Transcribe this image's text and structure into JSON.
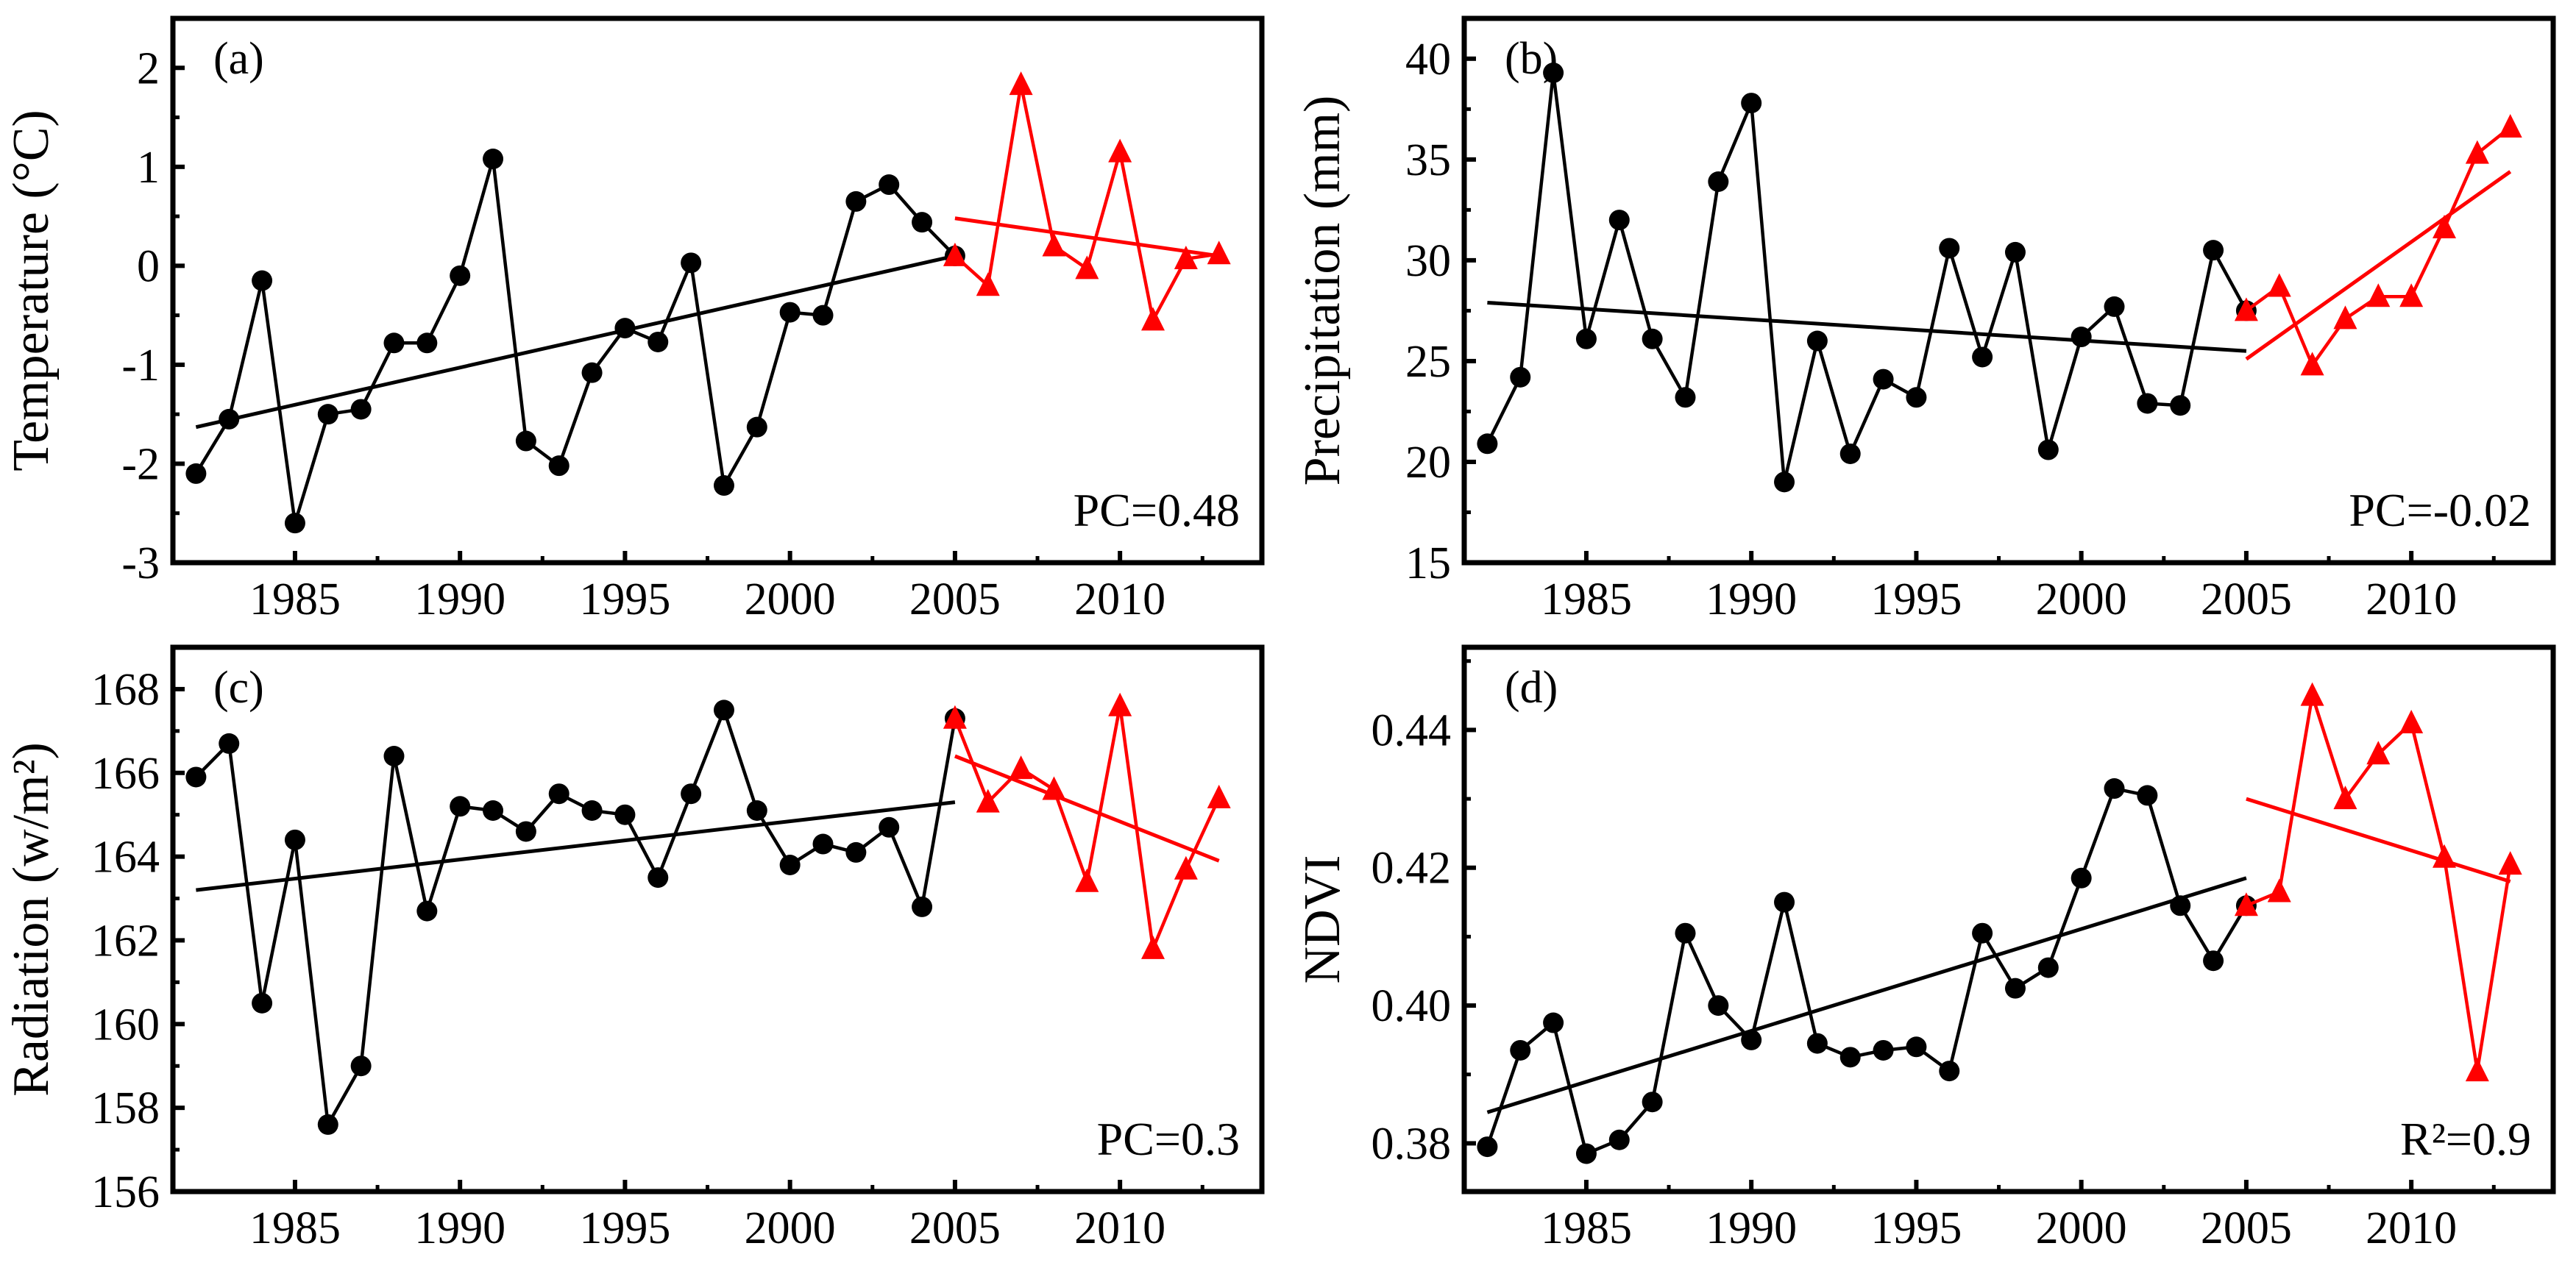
{
  "chart_data": [
    {
      "type": "line",
      "panel_label": "(a)",
      "ylabel": "Temperature (°C)",
      "xlim": [
        1981.3,
        2014.3
      ],
      "ylim": [
        -3,
        2.5
      ],
      "yticks": [
        -3,
        -2,
        -1,
        0,
        1,
        2
      ],
      "ytick_labels": [
        "-3",
        "-2",
        "-1",
        "0",
        "1",
        "2"
      ],
      "xticks": [
        1985,
        1990,
        1995,
        2000,
        2005,
        2010
      ],
      "xtick_labels": [
        "1985",
        "1990",
        "1995",
        "2000",
        "2005",
        "2010"
      ],
      "annotation": "PC=0.48",
      "series": [
        {
          "color": "#000000",
          "marker": "circle",
          "x": [
            1982,
            1983,
            1984,
            1985,
            1986,
            1987,
            1988,
            1989,
            1990,
            1991,
            1992,
            1993,
            1994,
            1995,
            1996,
            1997,
            1998,
            1999,
            2000,
            2001,
            2002,
            2003,
            2004,
            2005
          ],
          "y": [
            -2.1,
            -1.55,
            -0.15,
            -2.6,
            -1.5,
            -1.45,
            -0.78,
            -0.78,
            -0.1,
            1.08,
            -1.77,
            -2.02,
            -1.08,
            -0.63,
            -0.77,
            0.03,
            -2.22,
            -1.63,
            -0.47,
            -0.5,
            0.65,
            0.82,
            0.44,
            0.1
          ],
          "trend": [
            [
              1982,
              -1.63
            ],
            [
              2005,
              0.1
            ]
          ]
        },
        {
          "color": "#ff0000",
          "marker": "triangle",
          "x": [
            2005,
            2006,
            2007,
            2008,
            2009,
            2010,
            2011,
            2012,
            2013
          ],
          "y": [
            0.1,
            -0.2,
            1.83,
            0.2,
            -0.03,
            1.15,
            -0.55,
            0.07,
            0.12
          ],
          "trend": [
            [
              2005,
              0.48
            ],
            [
              2013,
              0.1
            ]
          ]
        }
      ]
    },
    {
      "type": "line",
      "panel_label": "(b)",
      "ylabel": "Precipitation (mm)",
      "xlim": [
        1981.3,
        2014.3
      ],
      "ylim": [
        15,
        42
      ],
      "yticks": [
        15,
        20,
        25,
        30,
        35,
        40
      ],
      "ytick_labels": [
        "15",
        "20",
        "25",
        "30",
        "35",
        "40"
      ],
      "xticks": [
        1985,
        1990,
        1995,
        2000,
        2005,
        2010
      ],
      "xtick_labels": [
        "1985",
        "1990",
        "1995",
        "2000",
        "2005",
        "2010"
      ],
      "annotation": "PC=-0.02",
      "series": [
        {
          "color": "#000000",
          "marker": "circle",
          "x": [
            1982,
            1983,
            1984,
            1985,
            1986,
            1987,
            1988,
            1989,
            1990,
            1991,
            1992,
            1993,
            1994,
            1995,
            1996,
            1997,
            1998,
            1999,
            2000,
            2001,
            2002,
            2003,
            2004,
            2005
          ],
          "y": [
            20.9,
            24.2,
            39.3,
            26.1,
            32.0,
            26.1,
            23.2,
            33.9,
            37.8,
            19.0,
            26.0,
            20.4,
            24.1,
            23.2,
            30.6,
            25.2,
            30.4,
            20.6,
            26.2,
            27.7,
            22.9,
            22.8,
            30.5,
            27.5
          ],
          "trend": [
            [
              1982,
              27.9
            ],
            [
              2005,
              25.5
            ]
          ]
        },
        {
          "color": "#ff0000",
          "marker": "triangle",
          "x": [
            2005,
            2006,
            2007,
            2008,
            2009,
            2010,
            2011,
            2012,
            2013
          ],
          "y": [
            27.5,
            28.7,
            24.8,
            27.1,
            28.2,
            28.2,
            31.6,
            35.3,
            36.6
          ],
          "trend": [
            [
              2005,
              25.1
            ],
            [
              2013,
              34.4
            ]
          ]
        }
      ]
    },
    {
      "type": "line",
      "panel_label": "(c)",
      "ylabel": "Radiation (w/m²)",
      "xlim": [
        1981.3,
        2014.3
      ],
      "ylim": [
        156,
        169
      ],
      "yticks": [
        156,
        158,
        160,
        162,
        164,
        166,
        168
      ],
      "ytick_labels": [
        "156",
        "158",
        "160",
        "162",
        "164",
        "166",
        "168"
      ],
      "xticks": [
        1985,
        1990,
        1995,
        2000,
        2005,
        2010
      ],
      "xtick_labels": [
        "1985",
        "1990",
        "1995",
        "2000",
        "2005",
        "2010"
      ],
      "annotation": "PC=0.3",
      "series": [
        {
          "color": "#000000",
          "marker": "circle",
          "x": [
            1982,
            1983,
            1984,
            1985,
            1986,
            1987,
            1988,
            1989,
            1990,
            1991,
            1992,
            1993,
            1994,
            1995,
            1996,
            1997,
            1998,
            1999,
            2000,
            2001,
            2002,
            2003,
            2004,
            2005
          ],
          "y": [
            165.9,
            166.7,
            160.5,
            164.4,
            157.6,
            159.0,
            166.4,
            162.7,
            165.2,
            165.1,
            164.6,
            165.5,
            165.1,
            165.0,
            163.5,
            165.5,
            167.5,
            165.1,
            163.8,
            164.3,
            164.1,
            164.7,
            162.8,
            167.3
          ],
          "trend": [
            [
              1982,
              163.2
            ],
            [
              2005,
              165.3
            ]
          ]
        },
        {
          "color": "#ff0000",
          "marker": "triangle",
          "x": [
            2005,
            2006,
            2007,
            2008,
            2009,
            2010,
            2011,
            2012,
            2013
          ],
          "y": [
            167.3,
            165.3,
            166.1,
            165.6,
            163.4,
            167.6,
            161.8,
            163.7,
            165.4
          ],
          "trend": [
            [
              2005,
              166.4
            ],
            [
              2013,
              163.9
            ]
          ]
        }
      ]
    },
    {
      "type": "line",
      "panel_label": "(d)",
      "ylabel": "NDVI",
      "xlim": [
        1981.3,
        2014.3
      ],
      "ylim": [
        0.373,
        0.452
      ],
      "yticks": [
        0.38,
        0.4,
        0.42,
        0.44
      ],
      "ytick_labels": [
        "0.38",
        "0.40",
        "0.42",
        "0.44"
      ],
      "xticks": [
        1985,
        1990,
        1995,
        2000,
        2005,
        2010
      ],
      "xtick_labels": [
        "1985",
        "1990",
        "1995",
        "2000",
        "2005",
        "2010"
      ],
      "annotation": "R²=0.9",
      "series": [
        {
          "color": "#000000",
          "marker": "circle",
          "x": [
            1982,
            1983,
            1984,
            1985,
            1986,
            1987,
            1988,
            1989,
            1990,
            1991,
            1992,
            1993,
            1994,
            1995,
            1996,
            1997,
            1998,
            1999,
            2000,
            2001,
            2002,
            2003,
            2004,
            2005
          ],
          "y": [
            0.3795,
            0.3935,
            0.3975,
            0.3785,
            0.3805,
            0.386,
            0.4105,
            0.4,
            0.395,
            0.415,
            0.3945,
            0.3925,
            0.3935,
            0.394,
            0.3905,
            0.4105,
            0.4025,
            0.4055,
            0.4185,
            0.4315,
            0.4305,
            0.4145,
            0.4065,
            0.4145
          ],
          "trend": [
            [
              1982,
              0.3845
            ],
            [
              2005,
              0.4185
            ]
          ]
        },
        {
          "color": "#ff0000",
          "marker": "triangle",
          "x": [
            2005,
            2006,
            2007,
            2008,
            2009,
            2010,
            2011,
            2012,
            2013
          ],
          "y": [
            0.4145,
            0.4165,
            0.445,
            0.43,
            0.4365,
            0.441,
            0.4215,
            0.3905,
            0.4205
          ],
          "trend": [
            [
              2005,
              0.43
            ],
            [
              2013,
              0.418
            ]
          ]
        }
      ]
    }
  ]
}
